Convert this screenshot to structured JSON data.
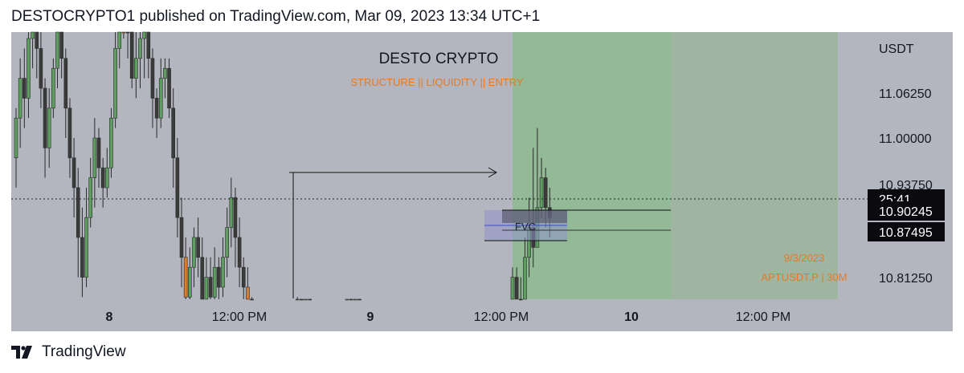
{
  "header": {
    "text": "DESTOCRYPTO1 published on TradingView.com, Mar 09, 2023 13:34 UTC+1"
  },
  "brand": {
    "name": "TradingView",
    "icon": "tradingview-logo-icon"
  },
  "colors": {
    "background": "#b3b6be",
    "bull": "#5d9e60",
    "bear": "#3b3b3b",
    "orange": "#e07b2a",
    "target_zone": "#8dba8f",
    "accent_text": "#e07b2a"
  },
  "chart_data": {
    "type": "candlestick",
    "symbol": "APTUSDT.P | 30M",
    "title": "DESTO CRYPTO",
    "subtitle": "STRUCTURE || LIQUIDITY || ENTRY",
    "date_label": "9/3/2023",
    "currency": "USDT",
    "y_ticks": [
      "11.06250",
      "11.00000",
      "10.93750",
      "10.81250"
    ],
    "x_ticks": [
      {
        "label": "8",
        "bold": true
      },
      {
        "label": "12:00 PM",
        "bold": false
      },
      {
        "label": "9",
        "bold": true
      },
      {
        "label": "12:00 PM",
        "bold": false
      },
      {
        "label": "10",
        "bold": true
      },
      {
        "label": "12:00 PM",
        "bold": false
      }
    ],
    "price_labels": [
      {
        "text": "25:41",
        "value": 10.918
      },
      {
        "text": "10.90245",
        "value": 10.90245
      },
      {
        "text": "10.87495",
        "value": 10.87495
      }
    ],
    "current_price": 10.918,
    "fvg": {
      "label": "FVC",
      "top": 10.905,
      "bottom": 10.878
    },
    "candles": [
      [
        10.98,
        11.02,
        11.03,
        10.95
      ],
      [
        11.02,
        11.06,
        11.08,
        10.99
      ],
      [
        11.06,
        11.04,
        11.09,
        11.01
      ],
      [
        11.04,
        11.1,
        11.12,
        11.02
      ],
      [
        11.1,
        11.13,
        11.14,
        11.07
      ],
      [
        11.13,
        11.09,
        11.14,
        11.06
      ],
      [
        11.09,
        11.05,
        11.11,
        11.03
      ],
      [
        11.05,
        10.99,
        11.06,
        10.96
      ],
      [
        10.99,
        11.03,
        11.05,
        10.97
      ],
      [
        11.03,
        11.07,
        11.08,
        11.02
      ],
      [
        11.07,
        11.11,
        11.13,
        11.05
      ],
      [
        11.11,
        11.08,
        11.13,
        11.06
      ],
      [
        11.08,
        11.03,
        11.09,
        11.0
      ],
      [
        11.03,
        10.98,
        11.04,
        10.96
      ],
      [
        10.98,
        10.95,
        11.0,
        10.92
      ],
      [
        10.95,
        10.9,
        10.97,
        10.86
      ],
      [
        10.9,
        10.86,
        10.93,
        10.84
      ],
      [
        10.86,
        10.92,
        10.95,
        10.85
      ],
      [
        10.92,
        10.96,
        10.98,
        10.91
      ],
      [
        10.96,
        11.0,
        11.02,
        10.93
      ],
      [
        11.0,
        10.97,
        11.01,
        10.95
      ],
      [
        10.97,
        10.95,
        10.98,
        10.93
      ],
      [
        10.95,
        10.97,
        10.99,
        10.94
      ],
      [
        10.97,
        11.02,
        11.03,
        10.96
      ],
      [
        11.02,
        11.09,
        11.11,
        11.01
      ],
      [
        11.09,
        11.13,
        11.16,
        11.07
      ],
      [
        11.13,
        11.15,
        11.18,
        11.1
      ],
      [
        11.15,
        11.11,
        11.17,
        11.08
      ],
      [
        11.11,
        11.06,
        11.12,
        11.05
      ],
      [
        11.06,
        11.08,
        11.11,
        11.04
      ],
      [
        11.08,
        11.1,
        11.12,
        11.05
      ],
      [
        11.1,
        11.12,
        11.13,
        11.06
      ],
      [
        11.12,
        11.08,
        11.13,
        11.06
      ],
      [
        11.08,
        11.04,
        11.09,
        11.01
      ],
      [
        11.04,
        11.02,
        11.05,
        11.0
      ],
      [
        11.02,
        11.06,
        11.08,
        11.01
      ],
      [
        11.06,
        11.07,
        11.08,
        11.04
      ],
      [
        11.07,
        11.03,
        11.08,
        11.02
      ],
      [
        11.03,
        10.98,
        11.05,
        10.95
      ],
      [
        10.98,
        10.92,
        11.0,
        10.9
      ],
      [
        10.92,
        10.88,
        10.94,
        10.85
      ],
      [
        10.88,
        10.84,
        10.9,
        10.8
      ],
      [
        10.84,
        10.87,
        10.89,
        10.83
      ],
      [
        10.87,
        10.9,
        10.91,
        10.85
      ],
      [
        10.9,
        10.88,
        10.92,
        10.86
      ],
      [
        10.88,
        10.83,
        10.9,
        10.81
      ],
      [
        10.83,
        10.86,
        10.88,
        10.82
      ],
      [
        10.86,
        10.84,
        10.88,
        10.82
      ],
      [
        10.84,
        10.87,
        10.89,
        10.83
      ],
      [
        10.87,
        10.85,
        10.88,
        10.82
      ],
      [
        10.85,
        10.88,
        10.9,
        10.84
      ],
      [
        10.88,
        10.91,
        10.93,
        10.86
      ],
      [
        10.91,
        10.94,
        10.96,
        10.89
      ],
      [
        10.94,
        10.9,
        10.95,
        10.87
      ],
      [
        10.9,
        10.87,
        10.92,
        10.85
      ],
      [
        10.87,
        10.85,
        10.88,
        10.83
      ],
      [
        10.85,
        10.82,
        10.87,
        10.8
      ],
      [
        10.82,
        10.8,
        10.84,
        10.79
      ],
      [
        10.8,
        10.8,
        10.8,
        10.8
      ],
      [
        10.8,
        10.8,
        10.8,
        10.8
      ],
      [
        10.8,
        10.8,
        10.8,
        10.8
      ],
      [
        10.8,
        10.8,
        10.8,
        10.8
      ],
      [
        10.8,
        10.8,
        10.8,
        10.8
      ],
      [
        10.8,
        10.8,
        10.8,
        10.8
      ],
      [
        10.8,
        10.8,
        10.8,
        10.8
      ],
      [
        10.8,
        10.8,
        10.8,
        10.8
      ],
      [
        10.8,
        10.8,
        10.8,
        10.8
      ],
      [
        10.8,
        10.8,
        10.8,
        10.8
      ],
      [
        10.79,
        10.82,
        10.84,
        10.78
      ],
      [
        10.82,
        10.79,
        10.83,
        10.78
      ],
      [
        10.79,
        10.82,
        10.83,
        10.78
      ],
      [
        10.82,
        10.8,
        10.83,
        10.79
      ],
      [
        10.8,
        10.8,
        10.8,
        10.8
      ],
      [
        10.8,
        10.8,
        10.8,
        10.8
      ],
      [
        10.8,
        10.8,
        10.8,
        10.8
      ],
      [
        10.8,
        10.8,
        10.8,
        10.8
      ],
      [
        10.8,
        10.8,
        10.8,
        10.8
      ],
      [
        10.8,
        10.8,
        10.8,
        10.8
      ],
      [
        10.8,
        10.8,
        10.8,
        10.8
      ],
      [
        10.8,
        10.8,
        10.8,
        10.8
      ],
      [
        10.79,
        10.82,
        10.83,
        10.78
      ],
      [
        10.82,
        10.8,
        10.83,
        10.79
      ],
      [
        10.8,
        10.82,
        10.83,
        10.79
      ],
      [
        10.82,
        10.8,
        10.83,
        10.79
      ],
      [
        10.8,
        10.8,
        10.8,
        10.8
      ],
      [
        10.8,
        10.8,
        10.8,
        10.8
      ],
      [
        10.8,
        10.8,
        10.8,
        10.8
      ],
      [
        10.8,
        10.8,
        10.8,
        10.8
      ],
      [
        10.8,
        10.8,
        10.8,
        10.8
      ],
      [
        10.8,
        10.8,
        10.8,
        10.8
      ],
      [
        10.8,
        10.8,
        10.8,
        10.8
      ],
      [
        10.8,
        10.8,
        10.8,
        10.8
      ],
      [
        10.8,
        10.8,
        10.8,
        10.8
      ],
      [
        10.8,
        10.8,
        10.8,
        10.8
      ],
      [
        10.8,
        10.8,
        10.8,
        10.8
      ],
      [
        10.8,
        10.8,
        10.8,
        10.8
      ],
      [
        10.8,
        10.8,
        10.8,
        10.8
      ],
      [
        10.8,
        10.8,
        10.8,
        10.8
      ],
      [
        10.8,
        10.8,
        10.8,
        10.8
      ],
      [
        10.8,
        10.8,
        10.8,
        10.8
      ],
      [
        10.8,
        10.8,
        10.8,
        10.8
      ],
      [
        10.8,
        10.8,
        10.8,
        10.8
      ],
      [
        10.8,
        10.8,
        10.8,
        10.8
      ],
      [
        10.8,
        10.8,
        10.8,
        10.8
      ],
      [
        10.8,
        10.8,
        10.8,
        10.8
      ],
      [
        10.8,
        10.8,
        10.8,
        10.8
      ],
      [
        10.8,
        10.8,
        10.8,
        10.8
      ],
      [
        10.8,
        10.8,
        10.8,
        10.8
      ],
      [
        10.8,
        10.8,
        10.8,
        10.8
      ],
      [
        10.8,
        10.8,
        10.8,
        10.8
      ],
      [
        10.8,
        10.8,
        10.8,
        10.8
      ],
      [
        10.8,
        10.8,
        10.8,
        10.8
      ],
      [
        10.8,
        10.8,
        10.8,
        10.8
      ],
      [
        10.8,
        10.8,
        10.8,
        10.8
      ],
      [
        10.8,
        10.8,
        10.8,
        10.8
      ],
      [
        10.8,
        10.8,
        10.8,
        10.8
      ],
      [
        10.8,
        10.8,
        10.8,
        10.8
      ],
      [
        10.8,
        10.8,
        10.8,
        10.8
      ],
      [
        10.8,
        10.8,
        10.8,
        10.8
      ],
      [
        10.8,
        10.8,
        10.8,
        10.8
      ],
      [
        10.8,
        10.86,
        10.87,
        10.8
      ],
      [
        10.86,
        10.82,
        10.87,
        10.8
      ],
      [
        10.82,
        10.8,
        10.86,
        10.79
      ],
      [
        10.8,
        10.88,
        10.9,
        10.79
      ],
      [
        10.88,
        10.91,
        10.94,
        10.86
      ],
      [
        10.91,
        10.89,
        10.99,
        10.87
      ],
      [
        10.89,
        10.93,
        11.01,
        10.9
      ],
      [
        10.93,
        10.96,
        10.98,
        10.92
      ],
      [
        10.96,
        10.93,
        10.97,
        10.91
      ],
      [
        10.93,
        10.92,
        10.95,
        10.9
      ]
    ]
  }
}
